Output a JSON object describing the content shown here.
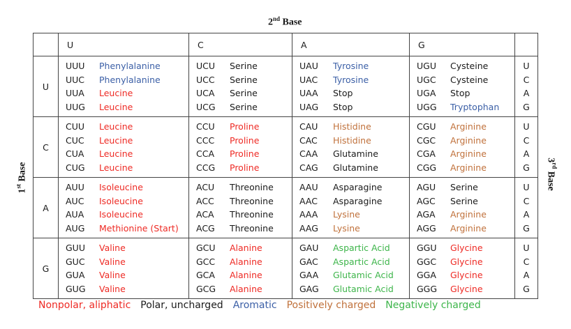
{
  "title": {
    "number": "2",
    "suffix": "nd",
    "word": "Base"
  },
  "left_label": {
    "number": "1",
    "suffix": "st",
    "word": "Base"
  },
  "right_label": {
    "number": "3",
    "suffix": "rd",
    "word": "Base"
  },
  "legend": [
    {
      "label": "Nonpolar, aliphatic",
      "color": "#ee2a24"
    },
    {
      "label": "Polar, uncharged",
      "color": "#1a1a1a"
    },
    {
      "label": "Aromatic",
      "color": "#3b5fa6"
    },
    {
      "label": "Positively charged",
      "color": "#c0713b"
    },
    {
      "label": "Negatively charged",
      "color": "#3db54a"
    }
  ],
  "table": {
    "columns": [
      "U",
      "C",
      "A",
      "G"
    ],
    "rows": [
      {
        "first": "U",
        "third": [
          "U",
          "C",
          "A",
          "G"
        ],
        "cells": [
          [
            {
              "codon": "UUU",
              "amino_acid": "Phenylalanine",
              "class": 2
            },
            {
              "codon": "UUC",
              "amino_acid": "Phenylalanine",
              "class": 2
            },
            {
              "codon": "UUA",
              "amino_acid": "Leucine",
              "class": 0
            },
            {
              "codon": "UUG",
              "amino_acid": "Leucine",
              "class": 0
            }
          ],
          [
            {
              "codon": "UCU",
              "amino_acid": "Serine",
              "class": 1
            },
            {
              "codon": "UCC",
              "amino_acid": "Serine",
              "class": 1
            },
            {
              "codon": "UCA",
              "amino_acid": "Serine",
              "class": 1
            },
            {
              "codon": "UCG",
              "amino_acid": "Serine",
              "class": 1
            }
          ],
          [
            {
              "codon": "UAU",
              "amino_acid": "Tyrosine",
              "class": 2
            },
            {
              "codon": "UAC",
              "amino_acid": "Tyrosine",
              "class": 2
            },
            {
              "codon": "UAA",
              "amino_acid": "Stop",
              "class": 1
            },
            {
              "codon": "UAG",
              "amino_acid": "Stop",
              "class": 1
            }
          ],
          [
            {
              "codon": "UGU",
              "amino_acid": "Cysteine",
              "class": 1
            },
            {
              "codon": "UGC",
              "amino_acid": "Cysteine",
              "class": 1
            },
            {
              "codon": "UGA",
              "amino_acid": "Stop",
              "class": 1
            },
            {
              "codon": "UGG",
              "amino_acid": "Tryptophan",
              "class": 2
            }
          ]
        ]
      },
      {
        "first": "C",
        "third": [
          "U",
          "C",
          "A",
          "G"
        ],
        "cells": [
          [
            {
              "codon": "CUU",
              "amino_acid": "Leucine",
              "class": 0
            },
            {
              "codon": "CUC",
              "amino_acid": "Leucine",
              "class": 0
            },
            {
              "codon": "CUA",
              "amino_acid": "Leucine",
              "class": 0
            },
            {
              "codon": "CUG",
              "amino_acid": "Leucine",
              "class": 0
            }
          ],
          [
            {
              "codon": "CCU",
              "amino_acid": "Proline",
              "class": 0
            },
            {
              "codon": "CCC",
              "amino_acid": "Proline",
              "class": 0
            },
            {
              "codon": "CCA",
              "amino_acid": "Proline",
              "class": 0
            },
            {
              "codon": "CCG",
              "amino_acid": "Proline",
              "class": 0
            }
          ],
          [
            {
              "codon": "CAU",
              "amino_acid": "Histidine",
              "class": 3
            },
            {
              "codon": "CAC",
              "amino_acid": "Histidine",
              "class": 3
            },
            {
              "codon": "CAA",
              "amino_acid": "Glutamine",
              "class": 1
            },
            {
              "codon": "CAG",
              "amino_acid": "Glutamine",
              "class": 1
            }
          ],
          [
            {
              "codon": "CGU",
              "amino_acid": "Arginine",
              "class": 3
            },
            {
              "codon": "CGC",
              "amino_acid": "Arginine",
              "class": 3
            },
            {
              "codon": "CGA",
              "amino_acid": "Arginine",
              "class": 3
            },
            {
              "codon": "CGG",
              "amino_acid": "Arginine",
              "class": 3
            }
          ]
        ]
      },
      {
        "first": "A",
        "third": [
          "U",
          "C",
          "A",
          "G"
        ],
        "cells": [
          [
            {
              "codon": "AUU",
              "amino_acid": "Isoleucine",
              "class": 0
            },
            {
              "codon": "AUC",
              "amino_acid": "Isoleucine",
              "class": 0
            },
            {
              "codon": "AUA",
              "amino_acid": "Isoleucine",
              "class": 0
            },
            {
              "codon": "AUG",
              "amino_acid": "Methionine (Start)",
              "class": 0
            }
          ],
          [
            {
              "codon": "ACU",
              "amino_acid": "Threonine",
              "class": 1
            },
            {
              "codon": "ACC",
              "amino_acid": "Threonine",
              "class": 1
            },
            {
              "codon": "ACA",
              "amino_acid": "Threonine",
              "class": 1
            },
            {
              "codon": "ACG",
              "amino_acid": "Threonine",
              "class": 1
            }
          ],
          [
            {
              "codon": "AAU",
              "amino_acid": "Asparagine",
              "class": 1
            },
            {
              "codon": "AAC",
              "amino_acid": "Asparagine",
              "class": 1
            },
            {
              "codon": "AAA",
              "amino_acid": "Lysine",
              "class": 3
            },
            {
              "codon": "AAG",
              "amino_acid": "Lysine",
              "class": 3
            }
          ],
          [
            {
              "codon": "AGU",
              "amino_acid": "Serine",
              "class": 1
            },
            {
              "codon": "AGC",
              "amino_acid": "Serine",
              "class": 1
            },
            {
              "codon": "AGA",
              "amino_acid": "Arginine",
              "class": 3
            },
            {
              "codon": "AGG",
              "amino_acid": "Arginine",
              "class": 3
            }
          ]
        ]
      },
      {
        "first": "G",
        "third": [
          "U",
          "C",
          "A",
          "G"
        ],
        "cells": [
          [
            {
              "codon": "GUU",
              "amino_acid": "Valine",
              "class": 0
            },
            {
              "codon": "GUC",
              "amino_acid": "Valine",
              "class": 0
            },
            {
              "codon": "GUA",
              "amino_acid": "Valine",
              "class": 0
            },
            {
              "codon": "GUG",
              "amino_acid": "Valine",
              "class": 0
            }
          ],
          [
            {
              "codon": "GCU",
              "amino_acid": "Alanine",
              "class": 0
            },
            {
              "codon": "GCC",
              "amino_acid": "Alanine",
              "class": 0
            },
            {
              "codon": "GCA",
              "amino_acid": "Alanine",
              "class": 0
            },
            {
              "codon": "GCG",
              "amino_acid": "Alanine",
              "class": 0
            }
          ],
          [
            {
              "codon": "GAU",
              "amino_acid": "Aspartic Acid",
              "class": 4
            },
            {
              "codon": "GAC",
              "amino_acid": "Aspartic Acid",
              "class": 4
            },
            {
              "codon": "GAA",
              "amino_acid": "Glutamic Acid",
              "class": 4
            },
            {
              "codon": "GAG",
              "amino_acid": "Glutamic Acid",
              "class": 4
            }
          ],
          [
            {
              "codon": "GGU",
              "amino_acid": "Glycine",
              "class": 0
            },
            {
              "codon": "GGC",
              "amino_acid": "Glycine",
              "class": 0
            },
            {
              "codon": "GGA",
              "amino_acid": "Glycine",
              "class": 0
            },
            {
              "codon": "GGG",
              "amino_acid": "Glycine",
              "class": 0
            }
          ]
        ]
      }
    ]
  }
}
